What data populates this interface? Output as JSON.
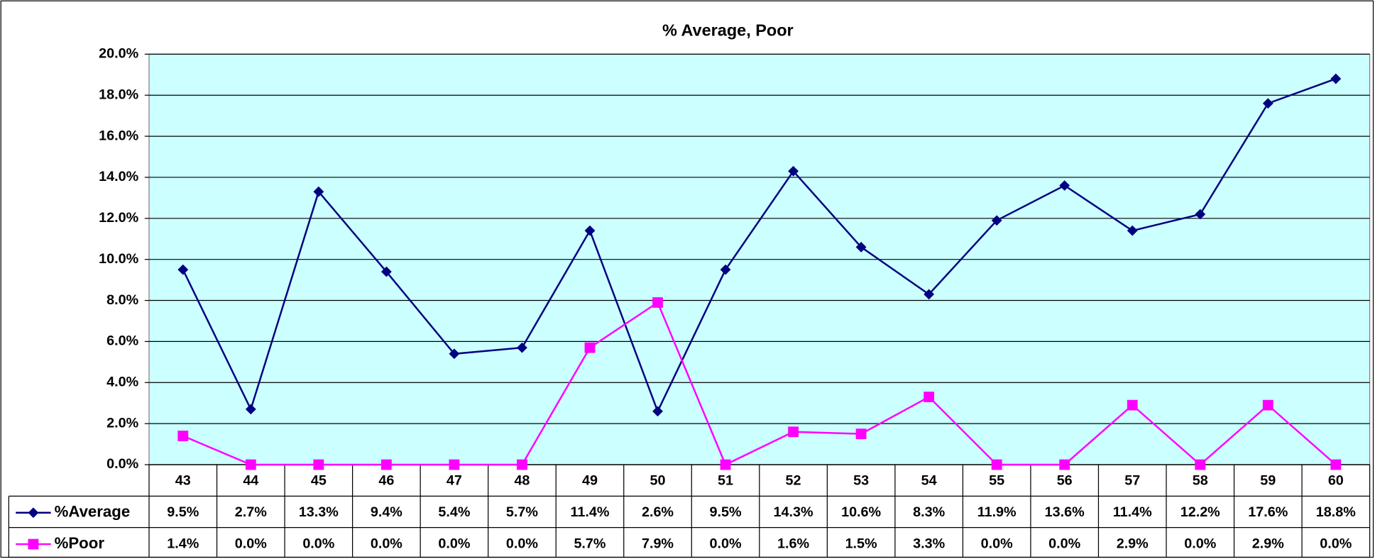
{
  "chart_data": {
    "type": "line",
    "title": "% Average, Poor",
    "categories": [
      "43",
      "44",
      "45",
      "46",
      "47",
      "48",
      "49",
      "50",
      "51",
      "52",
      "53",
      "54",
      "55",
      "56",
      "57",
      "58",
      "59",
      "60"
    ],
    "series": [
      {
        "name": "%Average",
        "color": "#000080",
        "marker": "diamond",
        "values": [
          9.5,
          2.7,
          13.3,
          9.4,
          5.4,
          5.7,
          11.4,
          2.6,
          9.5,
          14.3,
          10.6,
          8.3,
          11.9,
          13.6,
          11.4,
          12.2,
          17.6,
          18.8
        ],
        "value_labels": [
          "9.5%",
          "2.7%",
          "13.3%",
          "9.4%",
          "5.4%",
          "5.7%",
          "11.4%",
          "2.6%",
          "9.5%",
          "14.3%",
          "10.6%",
          "8.3%",
          "11.9%",
          "13.6%",
          "11.4%",
          "12.2%",
          "17.6%",
          "18.8%"
        ]
      },
      {
        "name": "%Poor",
        "color": "#ff00ff",
        "marker": "square",
        "values": [
          1.4,
          0.0,
          0.0,
          0.0,
          0.0,
          0.0,
          5.7,
          7.9,
          0.0,
          1.6,
          1.5,
          3.3,
          0.0,
          0.0,
          2.9,
          0.0,
          2.9,
          0.0
        ],
        "value_labels": [
          "1.4%",
          "0.0%",
          "0.0%",
          "0.0%",
          "0.0%",
          "0.0%",
          "5.7%",
          "7.9%",
          "0.0%",
          "1.6%",
          "1.5%",
          "3.3%",
          "0.0%",
          "0.0%",
          "2.9%",
          "0.0%",
          "2.9%",
          "0.0%"
        ]
      }
    ],
    "ylim": [
      0,
      20
    ],
    "yticks": [
      {
        "value": 0,
        "label": "0.0%"
      },
      {
        "value": 2,
        "label": "2.0%"
      },
      {
        "value": 4,
        "label": "4.0%"
      },
      {
        "value": 6,
        "label": "6.0%"
      },
      {
        "value": 8,
        "label": "8.0%"
      },
      {
        "value": 10,
        "label": "10.0%"
      },
      {
        "value": 12,
        "label": "12.0%"
      },
      {
        "value": 14,
        "label": "14.0%"
      },
      {
        "value": 16,
        "label": "16.0%"
      },
      {
        "value": 18,
        "label": "18.0%"
      },
      {
        "value": 20,
        "label": "20.0%"
      }
    ],
    "grid": true,
    "plot_background": "#ccffff",
    "data_table": true
  }
}
